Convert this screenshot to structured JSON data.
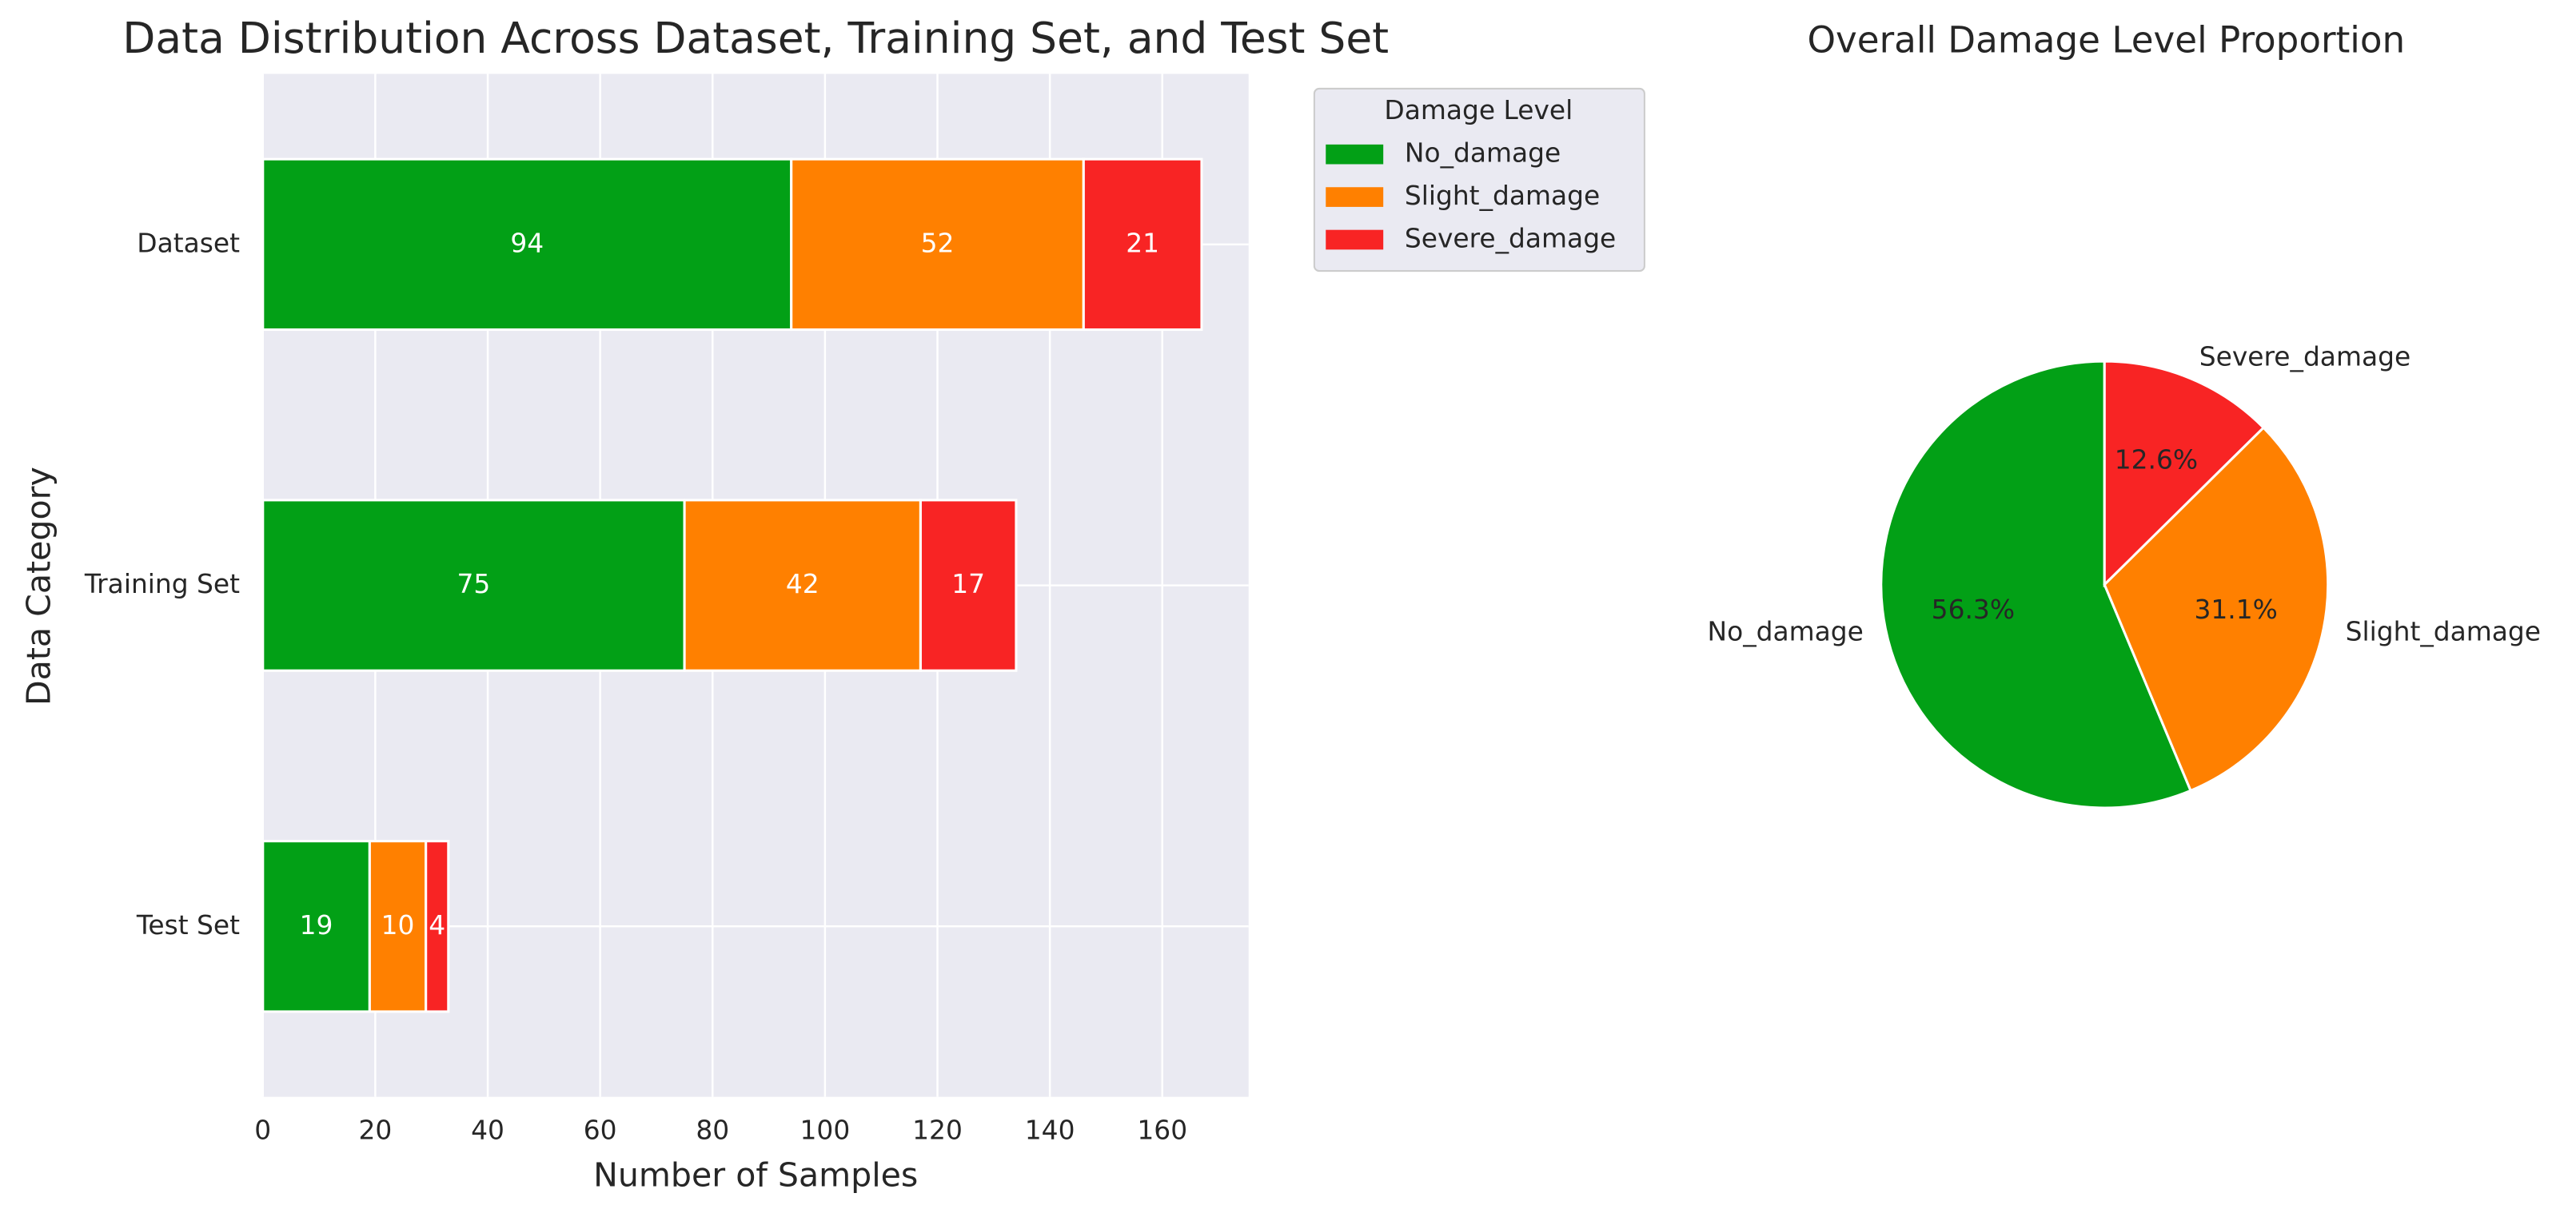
{
  "chart_data": [
    {
      "type": "bar",
      "orientation": "horizontal",
      "stacked": true,
      "title": "Data Distribution Across Dataset, Training Set, and Test Set",
      "x_label": "Number of Samples",
      "y_label": "Data Category",
      "categories": [
        "Dataset",
        "Training Set",
        "Test Set"
      ],
      "series": [
        {
          "name": "No_damage",
          "color": "#02a016",
          "values": [
            94,
            75,
            19
          ]
        },
        {
          "name": "Slight_damage",
          "color": "#ff8000",
          "values": [
            52,
            42,
            10
          ]
        },
        {
          "name": "Severe_damage",
          "color": "#f82424",
          "values": [
            21,
            17,
            4
          ]
        }
      ],
      "xlim": [
        0,
        175.35
      ],
      "xticks": [
        0,
        20,
        40,
        60,
        80,
        100,
        120,
        140,
        160
      ],
      "grid": true,
      "legend_title": "Damage Level",
      "legend": "outside upper right"
    },
    {
      "type": "pie",
      "title": "Overall Damage Level Proportion",
      "categories": [
        "No_damage",
        "Slight_damage",
        "Severe_damage"
      ],
      "values": [
        56.3,
        31.1,
        12.6
      ],
      "value_labels": [
        "56.3%",
        "31.1%",
        "12.6%"
      ],
      "colors": [
        "#02a016",
        "#ff8000",
        "#f82424"
      ]
    }
  ]
}
